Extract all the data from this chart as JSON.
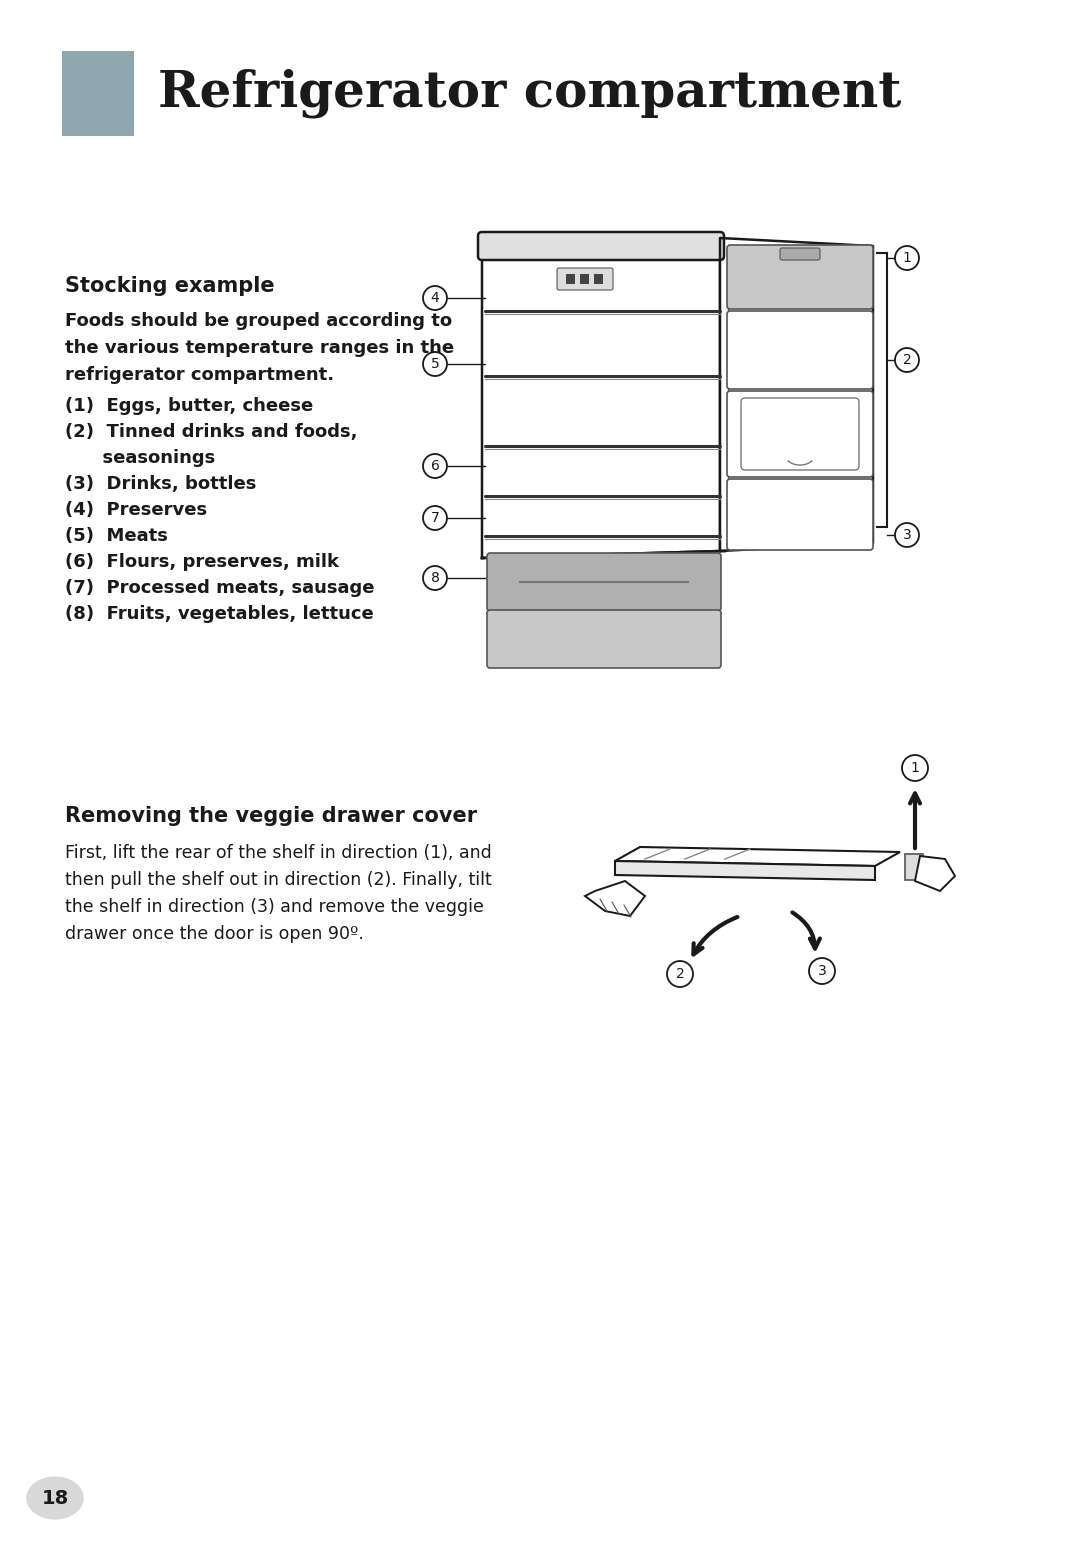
{
  "title": "Refrigerator compartment",
  "title_color": "#1a1a1a",
  "title_fontsize": 36,
  "header_rect_color": "#8fa8b0",
  "background_color": "#ffffff",
  "section1_title": "Stocking example",
  "section1_intro": "Foods should be grouped according to\nthe various temperature ranges in the\nrefrigerator compartment.",
  "section1_items": [
    "(1)  Eggs, butter, cheese",
    "(2)  Tinned drinks and foods,\n      seasonings",
    "(3)  Drinks, bottles",
    "(4)  Preserves",
    "(5)  Meats",
    "(6)  Flours, preserves, milk",
    "(7)  Processed meats, sausage",
    "(8)  Fruits, vegetables, lettuce"
  ],
  "section2_title": "Removing the veggie drawer cover",
  "section2_text": "First, lift the rear of the shelf in direction (1), and\nthen pull the shelf out in direction (2). Finally, tilt\nthe shelf in direction (3) and remove the veggie\ndrawer once the door is open 90º.",
  "page_number": "18",
  "text_color": "#1a1a1a",
  "gray_rect_color": "#8fa8b0",
  "fridge_body_color": "#f5f5f5",
  "fridge_door_color": "#e8e8e8",
  "drawer_gray": "#b0b0b0",
  "shelf_gray": "#c8c8c8"
}
